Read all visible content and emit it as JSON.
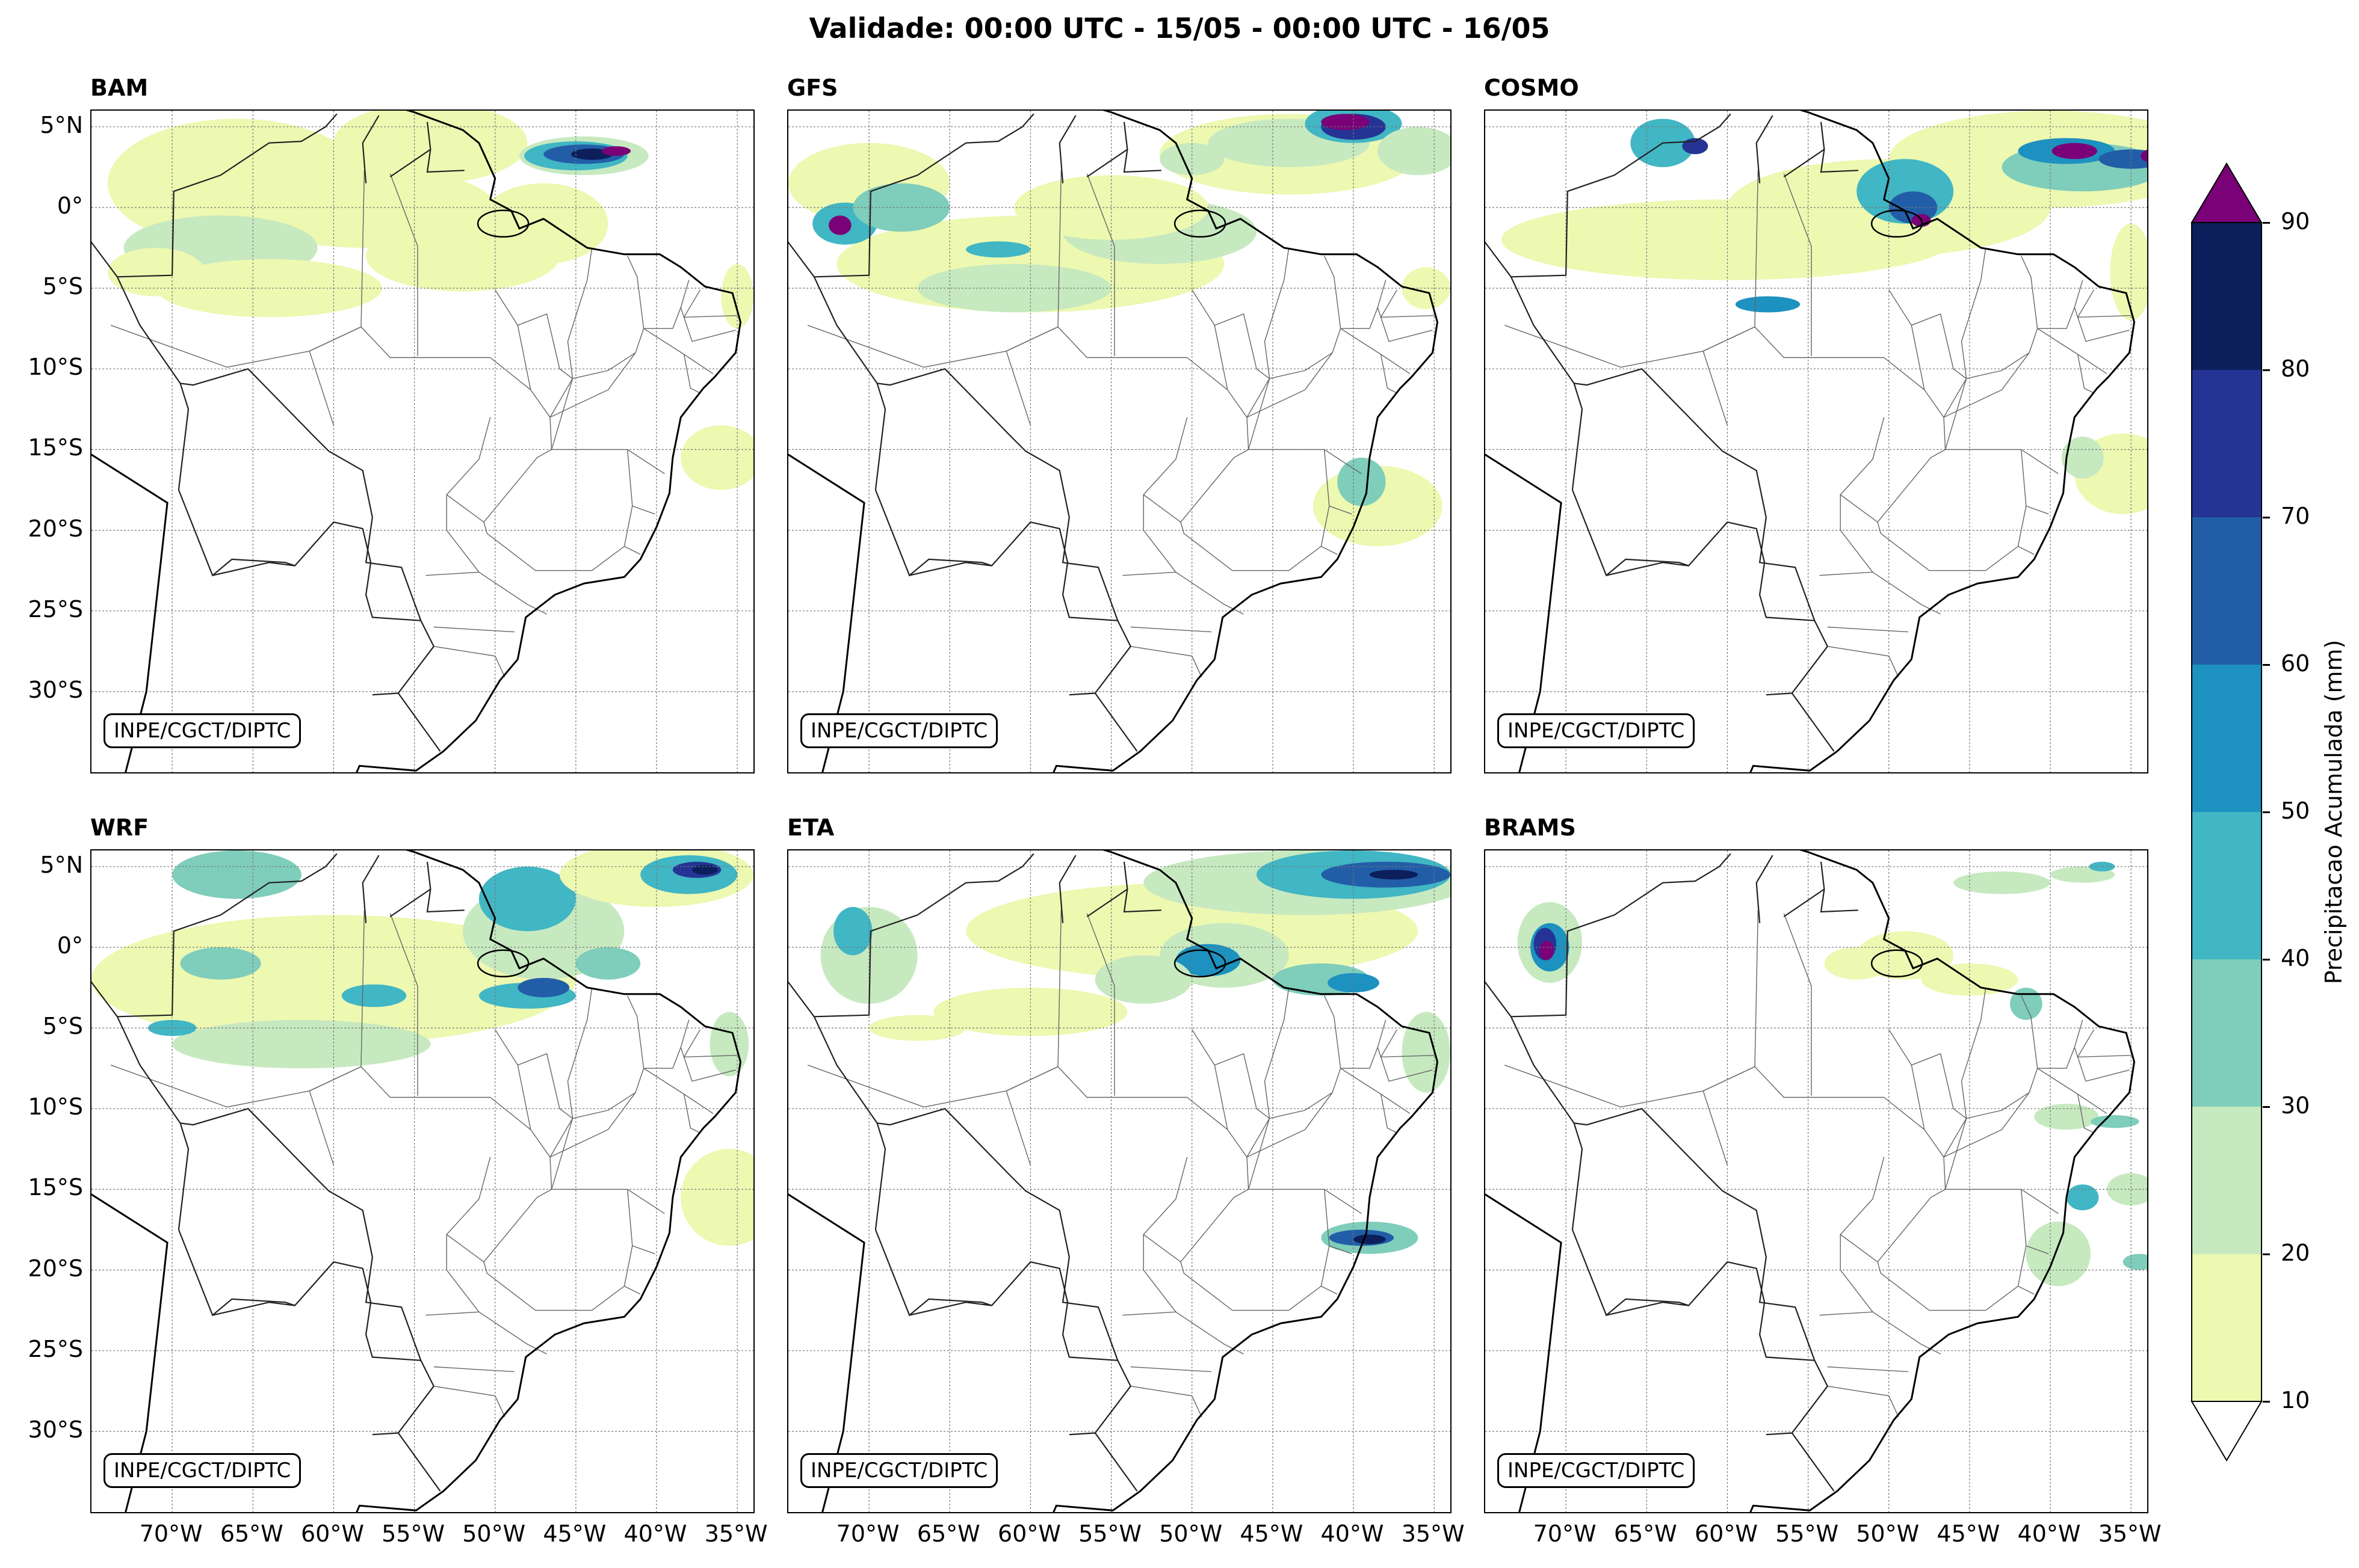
{
  "title": "Validade: 00:00 UTC - 15/05 - 00:00 UTC - 16/05",
  "credit": "INPE/CGCT/DIPTC",
  "panels": [
    {
      "name": "BAM"
    },
    {
      "name": "GFS"
    },
    {
      "name": "COSMO"
    },
    {
      "name": "WRF"
    },
    {
      "name": "ETA"
    },
    {
      "name": "BRAMS"
    }
  ],
  "lat_ticks": [
    {
      "label": "5°N",
      "value": 5
    },
    {
      "label": "0°",
      "value": 0
    },
    {
      "label": "5°S",
      "value": -5
    },
    {
      "label": "10°S",
      "value": -10
    },
    {
      "label": "15°S",
      "value": -15
    },
    {
      "label": "20°S",
      "value": -20
    },
    {
      "label": "25°S",
      "value": -25
    },
    {
      "label": "30°S",
      "value": -30
    }
  ],
  "lon_ticks": [
    {
      "label": "70°W",
      "value": -70
    },
    {
      "label": "65°W",
      "value": -65
    },
    {
      "label": "60°W",
      "value": -60
    },
    {
      "label": "55°W",
      "value": -55
    },
    {
      "label": "50°W",
      "value": -50
    },
    {
      "label": "45°W",
      "value": -45
    },
    {
      "label": "40°W",
      "value": -40
    },
    {
      "label": "35°W",
      "value": -35
    }
  ],
  "extent": {
    "lon_min": -75,
    "lon_max": -34,
    "lat_min": -35,
    "lat_max": 6
  },
  "colorbar": {
    "label": "Precipitacao Acumulada (mm)",
    "ticks": [
      "10",
      "20",
      "30",
      "40",
      "50",
      "60",
      "70",
      "80",
      "90"
    ],
    "colors": [
      "#edf8b1",
      "#c7e9c0",
      "#7fcdbb",
      "#41b6c4",
      "#1d91c0",
      "#225ea8",
      "#253494",
      "#0c1f5c"
    ],
    "over_color": "#7a0177",
    "under_color": "#ffffff"
  }
}
